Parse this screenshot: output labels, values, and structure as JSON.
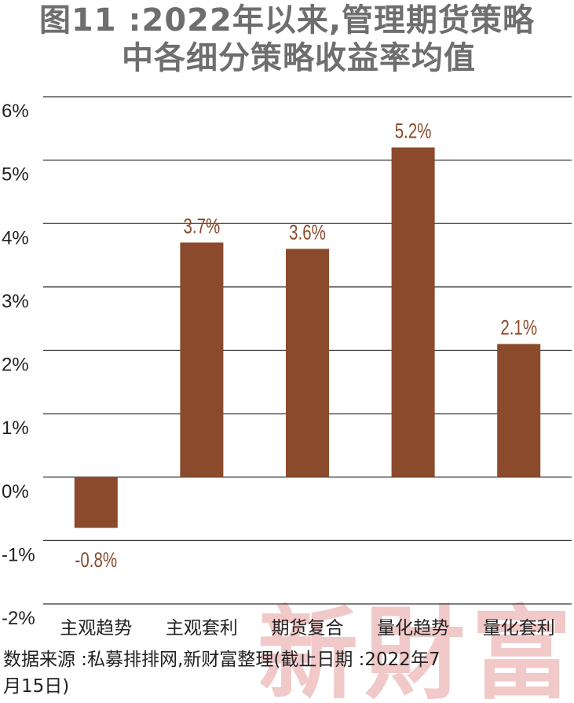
{
  "title": {
    "line1": "图11 :2022年以来,管理期货策略",
    "line2": "中各细分策略收益率均值"
  },
  "source": {
    "line1": "数据来源 :私募排排网,新财富整理(截止日期 :2022年7",
    "line2": "月15日)"
  },
  "watermark": {
    "text": "新財富",
    "color": "#f1c9c9"
  },
  "chart_data": {
    "type": "bar",
    "title": "",
    "xlabel": "",
    "ylabel": "",
    "categories": [
      "主观趋势",
      "主观套利",
      "期货复合",
      "量化趋势",
      "量化套利"
    ],
    "values": [
      -0.8,
      3.7,
      3.6,
      5.2,
      2.1
    ],
    "data_labels": [
      "-0.8%",
      "3.7%",
      "3.6%",
      "5.2%",
      "2.1%"
    ],
    "ylim": [
      -2,
      6
    ],
    "yticks": [
      6,
      5,
      4,
      3,
      2,
      1,
      0,
      -1,
      -2
    ],
    "ytick_labels": [
      "6%",
      "5%",
      "4%",
      "3%",
      "2%",
      "1%",
      "0%",
      "-1%",
      "-2%"
    ],
    "grid": true,
    "bar_color": "#8b4a2b",
    "label_color": "#8b4a2b",
    "grid_color": "#333333"
  }
}
